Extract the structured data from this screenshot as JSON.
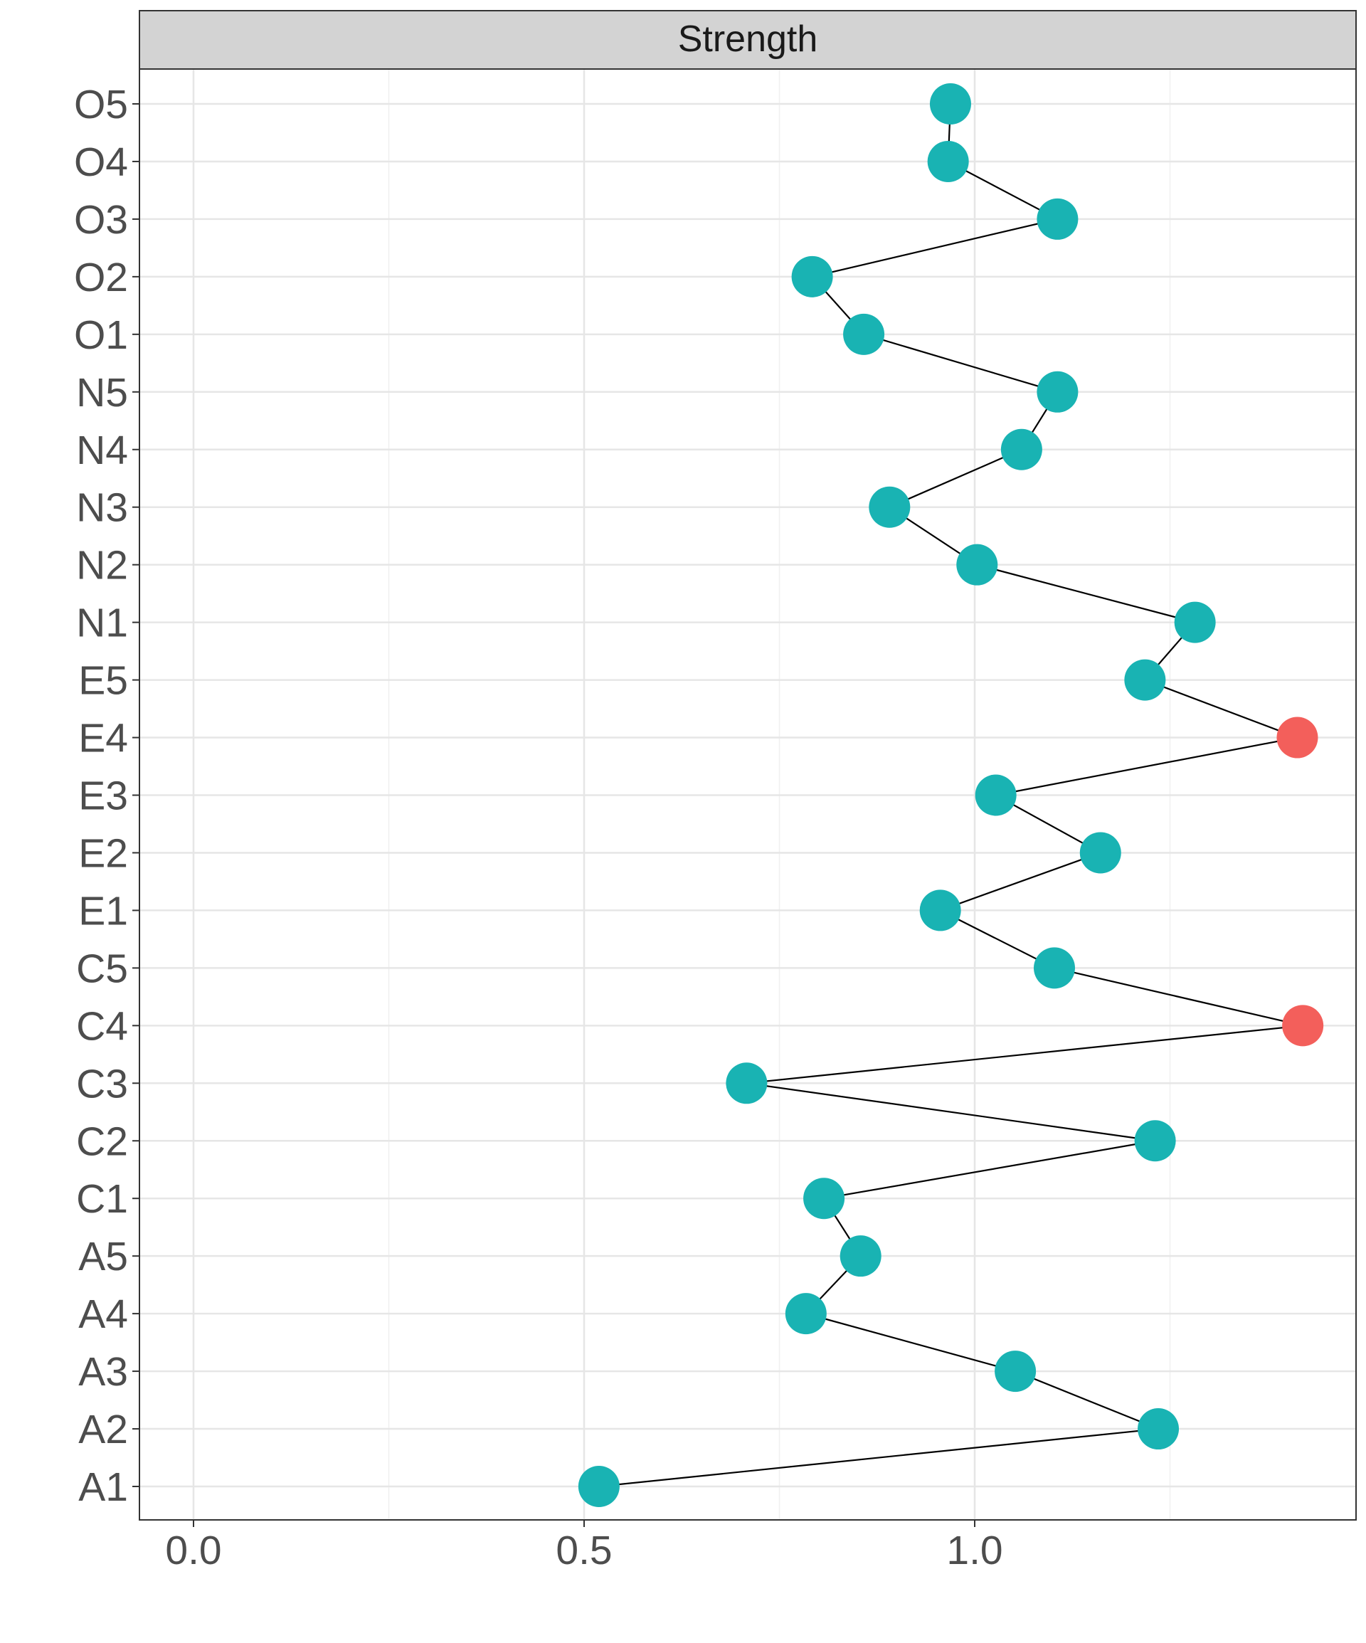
{
  "chart_data": {
    "type": "line",
    "title": "Strength",
    "xlabel": "",
    "ylabel": "",
    "xlim": [
      -0.07,
      1.49
    ],
    "x_ticks": [
      0.0,
      0.5,
      1.0
    ],
    "x_tick_labels": [
      "0.0",
      "0.5",
      "1.0"
    ],
    "grid": true,
    "categories": [
      "A1",
      "A2",
      "A3",
      "A4",
      "A5",
      "C1",
      "C2",
      "C3",
      "C4",
      "C5",
      "E1",
      "E2",
      "E3",
      "E4",
      "E5",
      "N1",
      "N2",
      "N3",
      "N4",
      "N5",
      "O1",
      "O2",
      "O3",
      "O4",
      "O5"
    ],
    "values": [
      0.519,
      1.235,
      1.052,
      0.784,
      0.854,
      0.807,
      1.231,
      0.708,
      1.42,
      1.102,
      0.956,
      1.161,
      1.027,
      1.413,
      1.218,
      1.282,
      1.003,
      0.891,
      1.06,
      1.106,
      0.858,
      0.792,
      1.106,
      0.966,
      0.969
    ],
    "highlighted": [
      "C4",
      "E4"
    ],
    "colors": {
      "point": "#19B3B3",
      "highlight": "#F35F5B",
      "line": "#000000"
    }
  }
}
